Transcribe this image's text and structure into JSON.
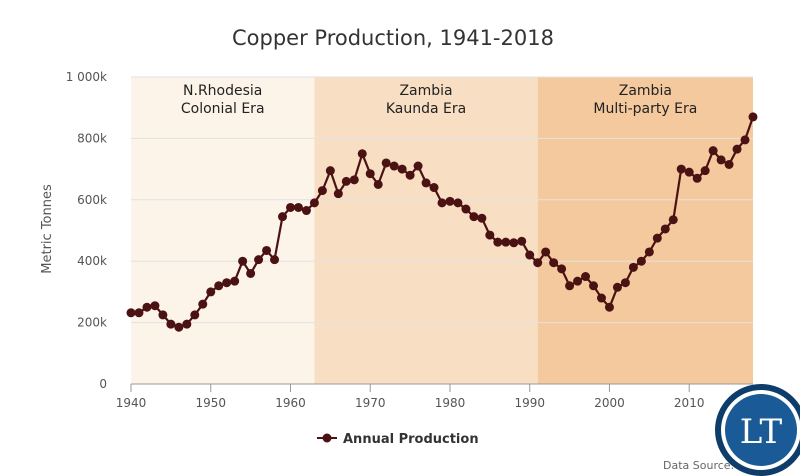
{
  "chart_data": {
    "type": "line",
    "title": "Copper Production, 1941-2018",
    "ylabel": "Metric Tonnes",
    "xlabel": "",
    "xlim": [
      1940,
      2018
    ],
    "ylim": [
      0,
      1000000
    ],
    "x_ticks": [
      1940,
      1950,
      1960,
      1970,
      1980,
      1990,
      2000,
      2010
    ],
    "x_tick_labels": [
      "1940",
      "1950",
      "1960",
      "1970",
      "1980",
      "1990",
      "2000",
      "2010"
    ],
    "y_ticks": [
      0,
      200000,
      400000,
      600000,
      800000,
      1000000
    ],
    "y_tick_labels": [
      "0",
      "200k",
      "400k",
      "600k",
      "800k",
      "1 000k"
    ],
    "grid": true,
    "legend_position": "bottom-center",
    "bands": [
      {
        "from": 1940,
        "to": 1963,
        "line1": "N.Rhodesia",
        "line2": "Colonial Era",
        "color": "#fcf3e9"
      },
      {
        "from": 1963,
        "to": 1991,
        "line1": "Zambia",
        "line2": "Kaunda Era",
        "color": "#f8dfc3"
      },
      {
        "from": 1991,
        "to": 2018,
        "line1": "Zambia",
        "line2": "Multi-party Era",
        "color": "#f5c99e"
      }
    ],
    "series": [
      {
        "name": "Annual Production",
        "color": "#4a1212",
        "x": [
          1940,
          1941,
          1942,
          1943,
          1944,
          1945,
          1946,
          1947,
          1948,
          1949,
          1950,
          1951,
          1952,
          1953,
          1954,
          1955,
          1956,
          1957,
          1958,
          1959,
          1960,
          1961,
          1962,
          1963,
          1964,
          1965,
          1966,
          1967,
          1968,
          1969,
          1970,
          1971,
          1972,
          1973,
          1974,
          1975,
          1976,
          1977,
          1978,
          1979,
          1980,
          1981,
          1982,
          1983,
          1984,
          1985,
          1986,
          1987,
          1988,
          1989,
          1990,
          1991,
          1992,
          1993,
          1994,
          1995,
          1996,
          1997,
          1998,
          1999,
          2000,
          2001,
          2002,
          2003,
          2004,
          2005,
          2006,
          2007,
          2008,
          2009,
          2010,
          2011,
          2012,
          2013,
          2014,
          2015,
          2016,
          2017,
          2018
        ],
        "values": [
          232000,
          232000,
          250000,
          255000,
          225000,
          195000,
          185000,
          195000,
          225000,
          260000,
          300000,
          320000,
          330000,
          335000,
          400000,
          360000,
          405000,
          435000,
          405000,
          545000,
          575000,
          575000,
          565000,
          590000,
          630000,
          695000,
          620000,
          660000,
          665000,
          750000,
          685000,
          650000,
          720000,
          710000,
          700000,
          680000,
          710000,
          655000,
          640000,
          590000,
          595000,
          590000,
          570000,
          545000,
          540000,
          485000,
          462000,
          462000,
          460000,
          465000,
          420000,
          395000,
          430000,
          395000,
          375000,
          320000,
          335000,
          350000,
          320000,
          280000,
          250000,
          315000,
          330000,
          380000,
          400000,
          430000,
          475000,
          505000,
          535000,
          700000,
          690000,
          670000,
          695000,
          760000,
          730000,
          715000,
          765000,
          795000,
          870000
        ]
      }
    ]
  },
  "legend": {
    "label": "Annual Production"
  },
  "source": {
    "text": "Data Source: "
  },
  "logo": {
    "text": "LT"
  }
}
